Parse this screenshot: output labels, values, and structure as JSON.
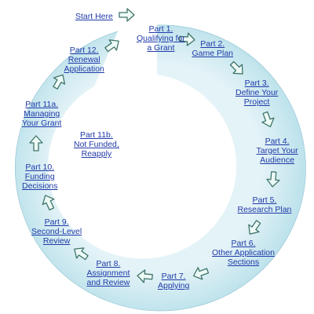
{
  "start_label": "Start Here",
  "steps": [
    {
      "id": "part-1",
      "lines": [
        "Part 1.",
        "Qualifying for",
        "a Grant"
      ]
    },
    {
      "id": "part-2",
      "lines": [
        "Part 2.",
        "Game Plan"
      ]
    },
    {
      "id": "part-3",
      "lines": [
        "Part 3.",
        "Define Your",
        "Project"
      ]
    },
    {
      "id": "part-4",
      "lines": [
        "Part 4.",
        "Target Your",
        "Audience"
      ]
    },
    {
      "id": "part-5",
      "lines": [
        "Part 5.",
        "Research Plan"
      ]
    },
    {
      "id": "part-6",
      "lines": [
        "Part 6.",
        "Other Application",
        "Sections"
      ]
    },
    {
      "id": "part-7",
      "lines": [
        "Part 7.",
        "Applying"
      ]
    },
    {
      "id": "part-8",
      "lines": [
        "Part 8.",
        "Assignment",
        "and Review"
      ]
    },
    {
      "id": "part-9",
      "lines": [
        "Part 9.",
        "Second-Level",
        "Review"
      ]
    },
    {
      "id": "part-10",
      "lines": [
        "Part 10.",
        "Funding",
        "Decisions"
      ]
    },
    {
      "id": "part-11a",
      "lines": [
        "Part 11a.",
        "Managing",
        "Your Grant"
      ]
    },
    {
      "id": "part-12",
      "lines": [
        "Part 12.",
        "Renewal",
        "Application"
      ]
    },
    {
      "id": "part-11b",
      "lines": [
        "Part 11b.",
        "Not Funded,",
        "Reapply"
      ]
    }
  ],
  "colors": {
    "ring_outer": "#bfe3ec",
    "ring_inner": "#e4f3f7",
    "ring_edge": "#9ccbd8",
    "arrow_fill": "#edfaf6",
    "arrow_stroke": "#3f7468",
    "link": "#1f3aa8"
  }
}
